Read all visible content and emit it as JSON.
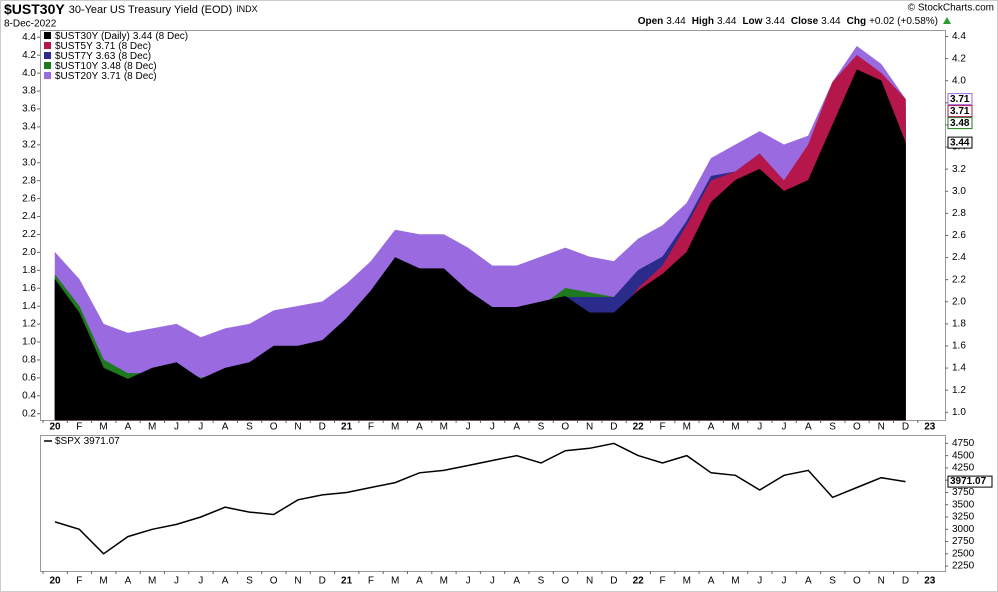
{
  "chart_data": [
    {
      "type": "area",
      "title": "$UST30Y",
      "subtitle": "30-Year US Treasury Yield (EOD)",
      "exchange": "INDX",
      "date": "8-Dec-2022",
      "source": "© StockCharts.com",
      "quote": [
        {
          "label": "Open",
          "value": "3.44"
        },
        {
          "label": "High",
          "value": "3.44"
        },
        {
          "label": "Low",
          "value": "3.44"
        },
        {
          "label": "Close",
          "value": "3.44"
        },
        {
          "label": "Chg",
          "value": "+0.02 (+0.58%)"
        }
      ],
      "categories": [
        "20",
        "F",
        "M",
        "A",
        "M",
        "J",
        "J",
        "A",
        "S",
        "O",
        "N",
        "D",
        "21",
        "F",
        "M",
        "A",
        "M",
        "J",
        "J",
        "A",
        "S",
        "O",
        "N",
        "D",
        "22",
        "F",
        "M",
        "A",
        "M",
        "J",
        "J",
        "A",
        "S",
        "O",
        "N",
        "D",
        "23"
      ],
      "ylim": [
        0.13,
        4.47
      ],
      "yticks": [
        0.2,
        0.4,
        0.6,
        0.8,
        {
          "value": 1,
          "label": "1.0"
        },
        1.2,
        1.4,
        1.6,
        1.8,
        {
          "value": 2,
          "label": "2.0"
        },
        2.2,
        2.4,
        2.6,
        2.8,
        {
          "value": 3,
          "label": "3.0"
        },
        3.2,
        3.4,
        3.6,
        3.8,
        {
          "value": 4,
          "label": "4.0"
        },
        4.2,
        4.4
      ],
      "y2lim": [
        0.93,
        4.45
      ],
      "y2ticks": [
        {
          "value": 1,
          "label": "1.0"
        },
        1.2,
        1.4,
        1.6,
        1.8,
        {
          "value": 2,
          "label": "2.0"
        },
        2.2,
        2.4,
        2.6,
        2.8,
        {
          "value": 3,
          "label": "3.0"
        },
        3.2,
        3.4,
        3.6,
        3.8,
        {
          "value": 4,
          "label": "4.0"
        },
        4.2,
        4.4
      ],
      "series": [
        {
          "name": "$UST30Y (Daily)",
          "date_label": "(8 Dec)",
          "color": "#000000",
          "axis": "y2",
          "price_label": true,
          "values": [
            2.2,
            1.9,
            1.4,
            1.3,
            1.4,
            1.45,
            1.3,
            1.4,
            1.45,
            1.6,
            1.6,
            1.65,
            1.85,
            2.1,
            2.4,
            2.3,
            2.3,
            2.1,
            1.95,
            1.95,
            2.0,
            2.05,
            1.9,
            1.9,
            2.1,
            2.25,
            2.45,
            2.9,
            3.1,
            3.2,
            3.0,
            3.1,
            3.6,
            4.1,
            4.0,
            3.44,
            null
          ]
        },
        {
          "name": "$UST5Y",
          "date_label": "(8 Dec)",
          "color": "#b5174a",
          "price_label": true,
          "values": [
            1.6,
            1.2,
            0.5,
            0.4,
            0.35,
            0.35,
            0.28,
            0.28,
            0.28,
            0.35,
            0.4,
            0.37,
            0.45,
            0.6,
            0.85,
            0.85,
            0.8,
            0.9,
            0.8,
            0.8,
            0.9,
            1.15,
            1.2,
            1.25,
            1.6,
            1.85,
            2.3,
            2.8,
            2.9,
            3.1,
            2.8,
            3.2,
            3.9,
            4.2,
            4.0,
            3.71,
            null
          ]
        },
        {
          "name": "$UST7Y",
          "date_label": "(8 Dec)",
          "color": "#2b2b8c",
          "values": [
            1.7,
            1.3,
            0.65,
            0.55,
            0.5,
            0.5,
            0.45,
            0.45,
            0.45,
            0.55,
            0.6,
            0.6,
            0.75,
            1.0,
            1.3,
            1.3,
            1.25,
            1.25,
            1.1,
            1.1,
            1.3,
            1.5,
            1.5,
            1.5,
            1.8,
            1.95,
            2.35,
            2.85,
            2.9,
            3.1,
            2.75,
            3.1,
            3.85,
            4.1,
            3.95,
            3.63,
            null
          ]
        },
        {
          "name": "$UST10Y",
          "date_label": "(8 Dec)",
          "color": "#1f7a1f",
          "price_label": true,
          "values": [
            1.75,
            1.4,
            0.8,
            0.65,
            0.65,
            0.7,
            0.6,
            0.65,
            0.7,
            0.8,
            0.9,
            0.92,
            1.1,
            1.3,
            1.6,
            1.65,
            1.6,
            1.5,
            1.3,
            1.3,
            1.4,
            1.6,
            1.55,
            1.5,
            1.8,
            1.95,
            2.3,
            2.85,
            2.85,
            3.0,
            2.7,
            3.0,
            3.7,
            4.0,
            3.8,
            3.48,
            null
          ]
        },
        {
          "name": "$UST20Y",
          "date_label": "(8 Dec)",
          "color": "#9a6ae0",
          "price_label": true,
          "values": [
            2.0,
            1.7,
            1.2,
            1.1,
            1.15,
            1.2,
            1.05,
            1.15,
            1.2,
            1.35,
            1.4,
            1.45,
            1.65,
            1.9,
            2.25,
            2.2,
            2.2,
            2.05,
            1.85,
            1.85,
            1.95,
            2.05,
            1.95,
            1.9,
            2.15,
            2.3,
            2.55,
            3.05,
            3.2,
            3.35,
            3.2,
            3.3,
            3.9,
            4.3,
            4.1,
            3.71,
            null
          ]
        }
      ]
    },
    {
      "type": "line",
      "categories": [
        "20",
        "F",
        "M",
        "A",
        "M",
        "J",
        "J",
        "A",
        "S",
        "O",
        "N",
        "D",
        "21",
        "F",
        "M",
        "A",
        "M",
        "J",
        "J",
        "A",
        "S",
        "O",
        "N",
        "D",
        "22",
        "F",
        "M",
        "A",
        "M",
        "J",
        "J",
        "A",
        "S",
        "O",
        "N",
        "D",
        "23"
      ],
      "ylim": [
        2150,
        4900
      ],
      "yticks": [
        2250,
        2500,
        2750,
        3000,
        3250,
        3500,
        3750,
        4000,
        4250,
        4500,
        4750
      ],
      "series": [
        {
          "name": "$SPX",
          "color": "#000000",
          "price_label": true,
          "values": [
            3150,
            3000,
            2500,
            2850,
            3000,
            3100,
            3250,
            3450,
            3350,
            3300,
            3600,
            3700,
            3750,
            3850,
            3950,
            4150,
            4200,
            4300,
            4400,
            4500,
            4350,
            4600,
            4650,
            4750,
            4500,
            4350,
            4500,
            4150,
            4100,
            3800,
            4100,
            4200,
            3650,
            3850,
            4050,
            3971.07,
            null
          ]
        }
      ]
    }
  ]
}
